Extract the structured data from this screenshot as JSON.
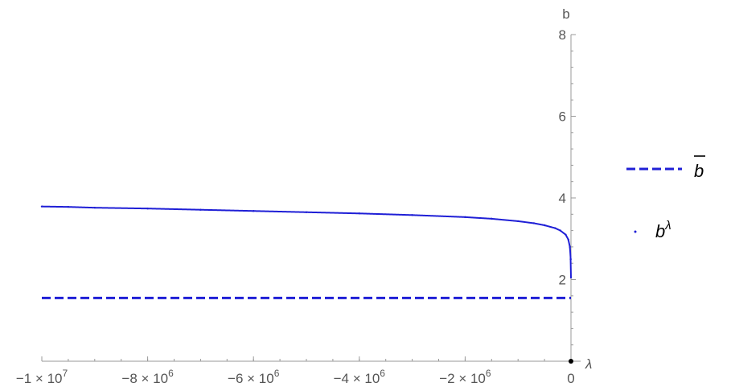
{
  "chart_data": {
    "type": "line",
    "xlabel": "λ",
    "ylabel": "b",
    "xlim": [
      -10000000,
      0
    ],
    "ylim": [
      0,
      8
    ],
    "x_ticks": [
      {
        "value": -10000000,
        "base": "−1 × 10",
        "exp": "7"
      },
      {
        "value": -8000000,
        "base": "−8 × 10",
        "exp": "6"
      },
      {
        "value": -6000000,
        "base": "−6 × 10",
        "exp": "6"
      },
      {
        "value": -4000000,
        "base": "−4 × 10",
        "exp": "6"
      },
      {
        "value": -2000000,
        "base": "−2 × 10",
        "exp": "6"
      },
      {
        "value": 0,
        "base": "0",
        "exp": ""
      }
    ],
    "y_ticks": [
      {
        "value": 2,
        "label": "2"
      },
      {
        "value": 4,
        "label": "4"
      },
      {
        "value": 6,
        "label": "6"
      },
      {
        "value": 8,
        "label": "8"
      }
    ],
    "series": [
      {
        "name": "b",
        "legend_decoration": "overline",
        "style": "dashed",
        "color": "#1f1fd6",
        "x": [
          -10000000,
          0
        ],
        "y": [
          1.55,
          1.55
        ]
      },
      {
        "name": "b",
        "legend_superscript": "λ",
        "style": "points",
        "color": "#1f1fd6",
        "x": [
          -10000000,
          -9500000,
          -9000000,
          -8000000,
          -7000000,
          -6000000,
          -5000000,
          -4000000,
          -3000000,
          -2000000,
          -1500000,
          -1000000,
          -700000,
          -500000,
          -300000,
          -200000,
          -100000,
          -50000,
          -20000,
          -5000,
          0
        ],
        "y": [
          3.79,
          3.78,
          3.76,
          3.74,
          3.71,
          3.68,
          3.65,
          3.62,
          3.58,
          3.53,
          3.49,
          3.43,
          3.38,
          3.33,
          3.26,
          3.2,
          3.1,
          2.98,
          2.8,
          2.5,
          2.05
        ]
      }
    ],
    "legend_position": "right",
    "grid": false
  }
}
